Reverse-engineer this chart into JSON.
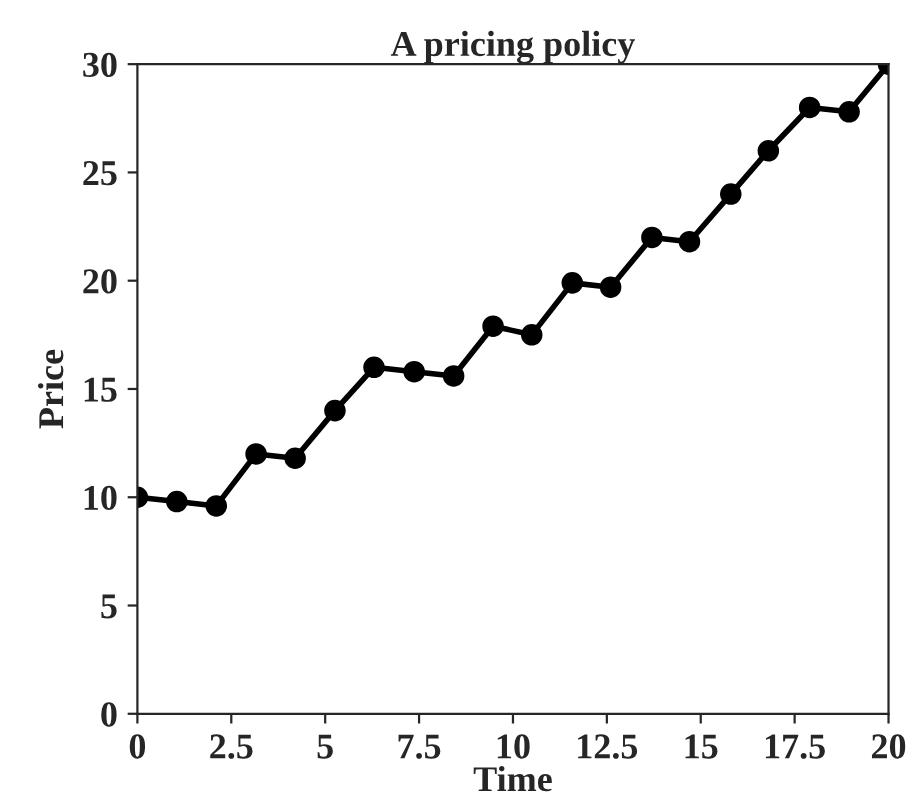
{
  "chart_data": {
    "type": "line",
    "title": "A pricing policy",
    "xlabel": "Time",
    "ylabel": "Price",
    "x": [
      0,
      1.05,
      2.1,
      3.16,
      4.2,
      5.26,
      6.3,
      7.37,
      8.42,
      9.47,
      10.5,
      11.58,
      12.6,
      13.7,
      14.7,
      15.8,
      16.8,
      17.9,
      18.95,
      20
    ],
    "series": [
      {
        "color": "#000000",
        "values": [
          10,
          9.8,
          9.6,
          12,
          11.8,
          14,
          16,
          15.8,
          15.6,
          17.9,
          17.5,
          19.9,
          19.7,
          22,
          21.8,
          24,
          26,
          28,
          27.8,
          30
        ]
      }
    ],
    "xlim": [
      0,
      20
    ],
    "xticks": [
      0,
      2.5,
      5,
      7.5,
      10,
      12.5,
      15,
      17.5,
      20
    ],
    "ylim": [
      0,
      30
    ],
    "yticks": [
      0,
      5,
      10,
      15,
      20,
      25,
      30
    ],
    "marker": "circle",
    "line_style": "solid",
    "grid": false,
    "legend": false
  }
}
